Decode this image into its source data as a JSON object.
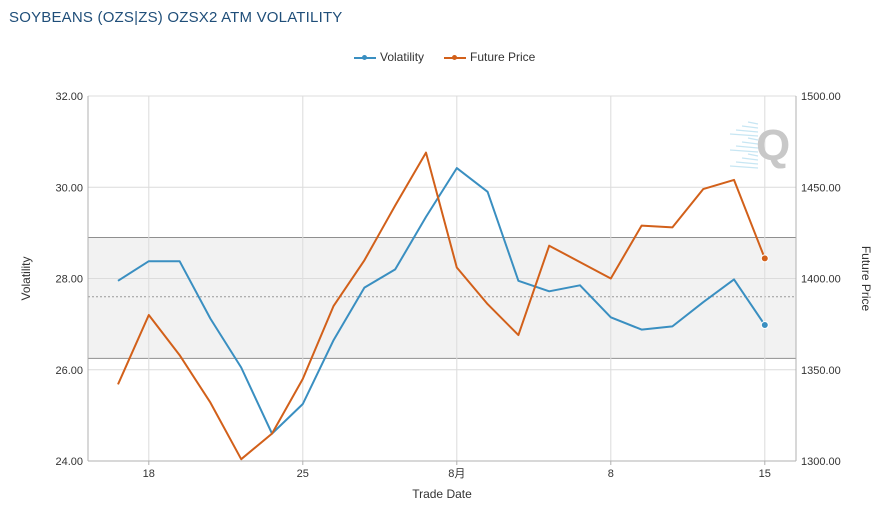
{
  "title": "SOYBEANS (OZS|ZS) OZSX2 ATM VOLATILITY",
  "legend": {
    "volatility": "Volatility",
    "future_price": "Future Price"
  },
  "colors": {
    "volatility": "#3a8fc1",
    "future_price": "#d2601a",
    "band": "#f2f2f2",
    "band_border": "#8f8f8f"
  },
  "watermark": "Q",
  "chart_data": {
    "type": "line",
    "xlabel": "Trade Date",
    "ylabel_left": "Volatility",
    "ylabel_right": "Future Price",
    "x_ticks": [
      "18",
      "25",
      "8月",
      "8",
      "15"
    ],
    "x_tick_index": [
      1,
      6,
      11,
      16,
      21
    ],
    "y_left_ticks": [
      "24.00",
      "26.00",
      "28.00",
      "30.00",
      "32.00"
    ],
    "y_right_ticks": [
      "1300.00",
      "1350.00",
      "1400.00",
      "1450.00",
      "1500.00"
    ],
    "ylim_left": [
      24,
      32
    ],
    "ylim_right": [
      1300,
      1500
    ],
    "band": {
      "upper": 28.9,
      "lower": 26.25,
      "mean": 27.6
    },
    "grid": true,
    "legend_position": "top-center",
    "series": [
      {
        "name": "Volatility",
        "axis": "left",
        "values": [
          27.95,
          28.38,
          28.38,
          27.12,
          26.05,
          24.6,
          25.25,
          26.65,
          27.8,
          28.2,
          29.35,
          30.42,
          29.9,
          27.95,
          27.72,
          27.85,
          27.15,
          26.88,
          26.95,
          27.48,
          27.98,
          26.98
        ]
      },
      {
        "name": "Future Price",
        "axis": "right",
        "values": [
          1342,
          1380,
          1358,
          1332,
          1301,
          1315,
          1345,
          1385,
          1410,
          1440,
          1469,
          1406,
          1386,
          1369,
          1418,
          1409,
          1400,
          1429,
          1428,
          1449,
          1454,
          1411
        ]
      }
    ]
  }
}
